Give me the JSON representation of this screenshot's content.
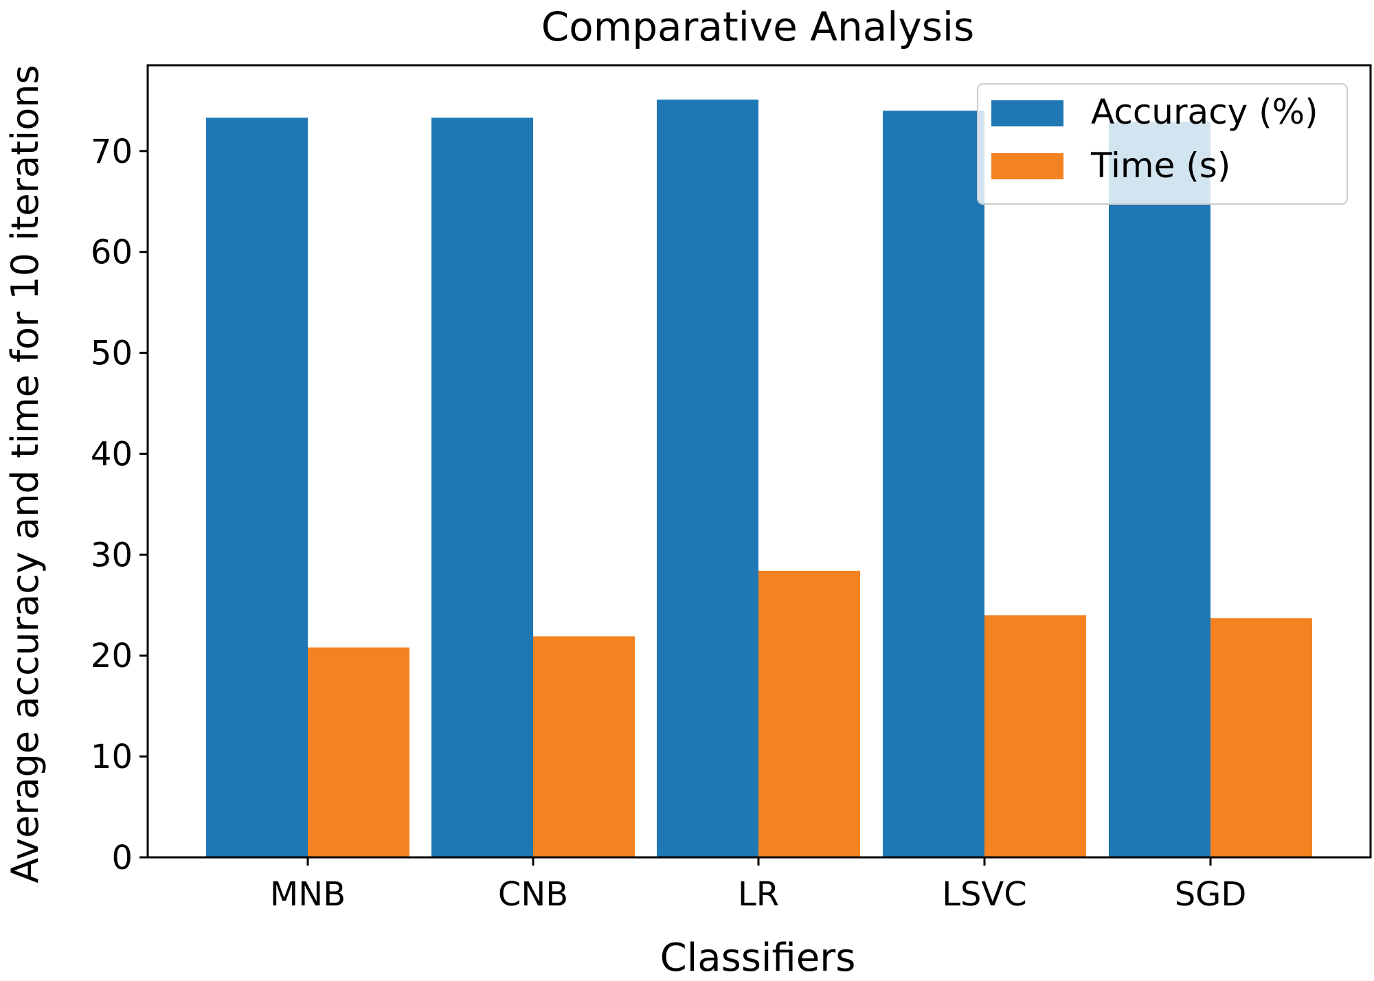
{
  "chart_data": {
    "type": "bar",
    "title": "Comparative Analysis",
    "xlabel": "Classifiers",
    "ylabel": "Average accuracy and time for 10 iterations",
    "categories": [
      "MNB",
      "CNB",
      "LR",
      "LSVC",
      "SGD"
    ],
    "series": [
      {
        "name": "Accuracy (%)",
        "color": "#1f77b4",
        "values": [
          73.3,
          73.3,
          75.1,
          74.0,
          72.9
        ]
      },
      {
        "name": "Time (s)",
        "color": "#f58220",
        "values": [
          20.8,
          21.9,
          28.4,
          24.0,
          23.7
        ]
      }
    ],
    "ylim": [
      0,
      78.5
    ],
    "yticks": [
      0,
      10,
      20,
      30,
      40,
      50,
      60,
      70
    ],
    "grid": false,
    "legend_position": "top-right"
  }
}
